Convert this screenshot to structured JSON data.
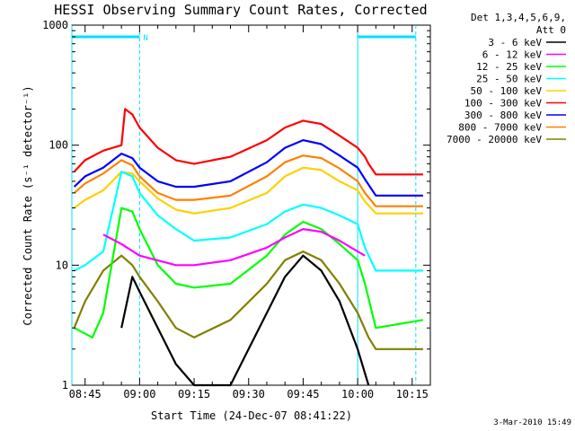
{
  "chart_data": {
    "type": "line",
    "title": "HESSI Observing Summary Count Rates, Corrected",
    "xlabel": "Start Time (24-Dec-07 08:41:22)",
    "ylabel": "Corrected Count Rate (s⁻¹ detector⁻¹)",
    "y_scale": "log",
    "ylim": [
      1,
      1000
    ],
    "yticks": [
      {
        "value": 1,
        "label": "1"
      },
      {
        "value": 10,
        "label": "10"
      },
      {
        "value": 100,
        "label": "100"
      },
      {
        "value": 1000,
        "label": "1000"
      }
    ],
    "xlim": [
      "08:41:22",
      "10:20:00"
    ],
    "xticks": [
      "08:45",
      "09:00",
      "09:15",
      "09:30",
      "09:45",
      "10:00",
      "10:15"
    ],
    "grid": false,
    "legend_position": "right",
    "legend_header": [
      "Det 1,3,4,5,6,9,",
      "Att 0"
    ],
    "timestamp": "3-Mar-2010 15:49",
    "markers": {
      "cyan_bar_label": "N",
      "vertical_lines": [
        "08:41:22",
        "09:00",
        "10:00",
        "10:16"
      ],
      "top_bars": [
        [
          "08:41:22",
          "09:00"
        ],
        [
          "10:00",
          "10:16"
        ]
      ]
    },
    "series": [
      {
        "name": "3 - 6 keV",
        "color": "#000000",
        "points": [
          [
            "08:55",
            3
          ],
          [
            "08:58",
            8
          ],
          [
            "09:00",
            6
          ],
          [
            "09:05",
            3
          ],
          [
            "09:10",
            1.5
          ],
          [
            "09:15",
            1
          ],
          [
            "09:25",
            1
          ],
          [
            "09:30",
            2
          ],
          [
            "09:35",
            4
          ],
          [
            "09:40",
            8
          ],
          [
            "09:45",
            12
          ],
          [
            "09:50",
            9
          ],
          [
            "09:55",
            5
          ],
          [
            "10:00",
            2
          ],
          [
            "10:03",
            1
          ]
        ]
      },
      {
        "name": "6 - 12 keV",
        "color": "#ff00ff",
        "points": [
          [
            "08:50",
            18
          ],
          [
            "08:55",
            15
          ],
          [
            "09:00",
            12
          ],
          [
            "09:10",
            10
          ],
          [
            "09:15",
            10
          ],
          [
            "09:25",
            11
          ],
          [
            "09:35",
            14
          ],
          [
            "09:40",
            17
          ],
          [
            "09:45",
            20
          ],
          [
            "09:50",
            19
          ],
          [
            "09:55",
            16
          ],
          [
            "10:00",
            13
          ],
          [
            "10:02",
            12
          ]
        ]
      },
      {
        "name": "12 - 25 keV",
        "color": "#00ff00",
        "points": [
          [
            "08:42",
            3
          ],
          [
            "08:47",
            2.5
          ],
          [
            "08:50",
            4
          ],
          [
            "08:55",
            30
          ],
          [
            "08:58",
            28
          ],
          [
            "09:00",
            20
          ],
          [
            "09:05",
            10
          ],
          [
            "09:10",
            7
          ],
          [
            "09:15",
            6.5
          ],
          [
            "09:25",
            7
          ],
          [
            "09:35",
            12
          ],
          [
            "09:40",
            18
          ],
          [
            "09:45",
            23
          ],
          [
            "09:50",
            20
          ],
          [
            "09:55",
            15
          ],
          [
            "10:00",
            11
          ],
          [
            "10:02",
            7
          ],
          [
            "10:05",
            3
          ],
          [
            "10:18",
            3.5
          ]
        ]
      },
      {
        "name": "25 - 50 keV",
        "color": "#00ffff",
        "points": [
          [
            "08:42",
            9
          ],
          [
            "08:45",
            10
          ],
          [
            "08:50",
            13
          ],
          [
            "08:55",
            60
          ],
          [
            "08:58",
            55
          ],
          [
            "09:00",
            40
          ],
          [
            "09:05",
            26
          ],
          [
            "09:10",
            20
          ],
          [
            "09:15",
            16
          ],
          [
            "09:25",
            17
          ],
          [
            "09:35",
            22
          ],
          [
            "09:40",
            28
          ],
          [
            "09:45",
            32
          ],
          [
            "09:50",
            30
          ],
          [
            "09:55",
            26
          ],
          [
            "10:00",
            22
          ],
          [
            "10:02",
            14
          ],
          [
            "10:05",
            9
          ],
          [
            "10:18",
            9
          ]
        ]
      },
      {
        "name": "50 - 100 keV",
        "color": "#ffd000",
        "points": [
          [
            "08:42",
            30
          ],
          [
            "08:45",
            35
          ],
          [
            "08:50",
            42
          ],
          [
            "08:55",
            60
          ],
          [
            "08:58",
            58
          ],
          [
            "09:00",
            50
          ],
          [
            "09:05",
            36
          ],
          [
            "09:10",
            29
          ],
          [
            "09:15",
            27
          ],
          [
            "09:25",
            30
          ],
          [
            "09:35",
            40
          ],
          [
            "09:40",
            55
          ],
          [
            "09:45",
            65
          ],
          [
            "09:50",
            62
          ],
          [
            "09:55",
            50
          ],
          [
            "10:00",
            42
          ],
          [
            "10:02",
            34
          ],
          [
            "10:05",
            27
          ],
          [
            "10:18",
            27
          ]
        ]
      },
      {
        "name": "100 - 300 keV",
        "color": "#ff0000",
        "points": [
          [
            "08:42",
            60
          ],
          [
            "08:45",
            75
          ],
          [
            "08:50",
            90
          ],
          [
            "08:55",
            100
          ],
          [
            "08:56",
            200
          ],
          [
            "08:58",
            180
          ],
          [
            "09:00",
            140
          ],
          [
            "09:05",
            95
          ],
          [
            "09:10",
            75
          ],
          [
            "09:15",
            70
          ],
          [
            "09:25",
            80
          ],
          [
            "09:35",
            110
          ],
          [
            "09:40",
            140
          ],
          [
            "09:45",
            160
          ],
          [
            "09:50",
            150
          ],
          [
            "09:55",
            120
          ],
          [
            "10:00",
            95
          ],
          [
            "10:02",
            80
          ],
          [
            "10:03",
            70
          ],
          [
            "10:05",
            57
          ],
          [
            "10:18",
            57
          ]
        ]
      },
      {
        "name": "300 - 800 keV",
        "color": "#0000ff",
        "points": [
          [
            "08:42",
            45
          ],
          [
            "08:45",
            55
          ],
          [
            "08:50",
            65
          ],
          [
            "08:55",
            85
          ],
          [
            "08:58",
            78
          ],
          [
            "09:00",
            65
          ],
          [
            "09:05",
            50
          ],
          [
            "09:10",
            45
          ],
          [
            "09:15",
            45
          ],
          [
            "09:25",
            50
          ],
          [
            "09:35",
            72
          ],
          [
            "09:40",
            95
          ],
          [
            "09:45",
            110
          ],
          [
            "09:50",
            102
          ],
          [
            "09:55",
            82
          ],
          [
            "10:00",
            65
          ],
          [
            "10:02",
            52
          ],
          [
            "10:05",
            38
          ],
          [
            "10:18",
            38
          ]
        ]
      },
      {
        "name": "800 - 7000 keV",
        "color": "#ff8000",
        "points": [
          [
            "08:42",
            40
          ],
          [
            "08:45",
            48
          ],
          [
            "08:50",
            58
          ],
          [
            "08:55",
            75
          ],
          [
            "08:58",
            68
          ],
          [
            "09:00",
            55
          ],
          [
            "09:05",
            40
          ],
          [
            "09:10",
            35
          ],
          [
            "09:15",
            35
          ],
          [
            "09:25",
            38
          ],
          [
            "09:35",
            55
          ],
          [
            "09:40",
            72
          ],
          [
            "09:45",
            82
          ],
          [
            "09:50",
            78
          ],
          [
            "09:55",
            64
          ],
          [
            "10:00",
            50
          ],
          [
            "10:02",
            40
          ],
          [
            "10:05",
            31
          ],
          [
            "10:18",
            31
          ]
        ]
      },
      {
        "name": "7000 - 20000 keV",
        "color": "#808000",
        "points": [
          [
            "08:42",
            3
          ],
          [
            "08:45",
            5
          ],
          [
            "08:50",
            9
          ],
          [
            "08:55",
            12
          ],
          [
            "08:58",
            10
          ],
          [
            "09:00",
            8
          ],
          [
            "09:05",
            5
          ],
          [
            "09:10",
            3
          ],
          [
            "09:15",
            2.5
          ],
          [
            "09:25",
            3.5
          ],
          [
            "09:35",
            7
          ],
          [
            "09:40",
            11
          ],
          [
            "09:45",
            13
          ],
          [
            "09:50",
            11
          ],
          [
            "09:55",
            7
          ],
          [
            "10:00",
            4
          ],
          [
            "10:03",
            2.5
          ],
          [
            "10:05",
            2
          ],
          [
            "10:18",
            2
          ]
        ]
      }
    ]
  }
}
